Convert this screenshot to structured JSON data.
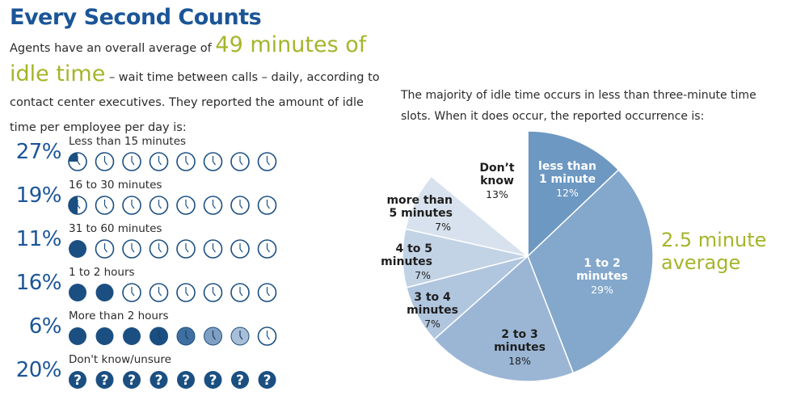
{
  "title": "Every Second Counts",
  "intro": {
    "part1": "Agents have an overall average of ",
    "highlight": "49 minutes of idle time",
    "part2": " – wait time between calls – daily, according to contact center executives. They reported the amount of idle time per employee per day is:"
  },
  "rows": [
    {
      "percent": "27%",
      "label": "Less than 15 minutes",
      "icons": [
        "quarter",
        "clock",
        "clock",
        "clock",
        "clock",
        "clock",
        "clock",
        "clock"
      ]
    },
    {
      "percent": "19%",
      "label": "16 to 30 minutes",
      "icons": [
        "half",
        "clock",
        "clock",
        "clock",
        "clock",
        "clock",
        "clock",
        "clock"
      ]
    },
    {
      "percent": "11%",
      "label": "31 to 60 minutes",
      "icons": [
        "full",
        "clock",
        "clock",
        "clock",
        "clock",
        "clock",
        "clock",
        "clock"
      ]
    },
    {
      "percent": "16%",
      "label": "1 to 2 hours",
      "icons": [
        "full",
        "full",
        "clock",
        "clock",
        "clock",
        "clock",
        "clock",
        "clock"
      ]
    },
    {
      "percent": "6%",
      "label": "More than 2 hours",
      "icons": [
        "full",
        "full",
        "full",
        "full-clock",
        "mid-clock",
        "light-clock",
        "lighter-clock",
        "clock"
      ]
    },
    {
      "percent": "20%",
      "label": "Don't know/unsure",
      "icons": [
        "question",
        "question",
        "question",
        "question",
        "question",
        "question",
        "question",
        "question"
      ]
    }
  ],
  "colors": {
    "title_blue": "#1b5597",
    "green": "#a5b52a",
    "icon_dark": "#1b4f82",
    "icon_outline": "#7b9fc4",
    "pie_slices": [
      "#6d98c2",
      "#84a8cc",
      "#9bb6d5",
      "#b0c5de",
      "#c3d3e6",
      "#d8e2ee",
      "#ffffff"
    ]
  },
  "chart_data": {
    "type": "pie",
    "caption": "The majority of idle time occurs in less than three-minute time slots. When it does occur, the reported occurrence is:",
    "annotation": "2.5 minute average",
    "slices": [
      {
        "label": "less than 1 minute",
        "value": 12,
        "display": "12%"
      },
      {
        "label": "1 to 2 minutes",
        "value": 29,
        "display": "29%"
      },
      {
        "label": "2 to 3 minutes",
        "value": 18,
        "display": "18%"
      },
      {
        "label": "3 to 4 minutes",
        "value": 7,
        "display": "7%"
      },
      {
        "label": "4 to 5 minutes",
        "value": 7,
        "display": "7%"
      },
      {
        "label": "more than 5 minutes",
        "value": 7,
        "display": "7%"
      },
      {
        "label": "Don't know",
        "value": 13,
        "display": "13%"
      }
    ]
  }
}
